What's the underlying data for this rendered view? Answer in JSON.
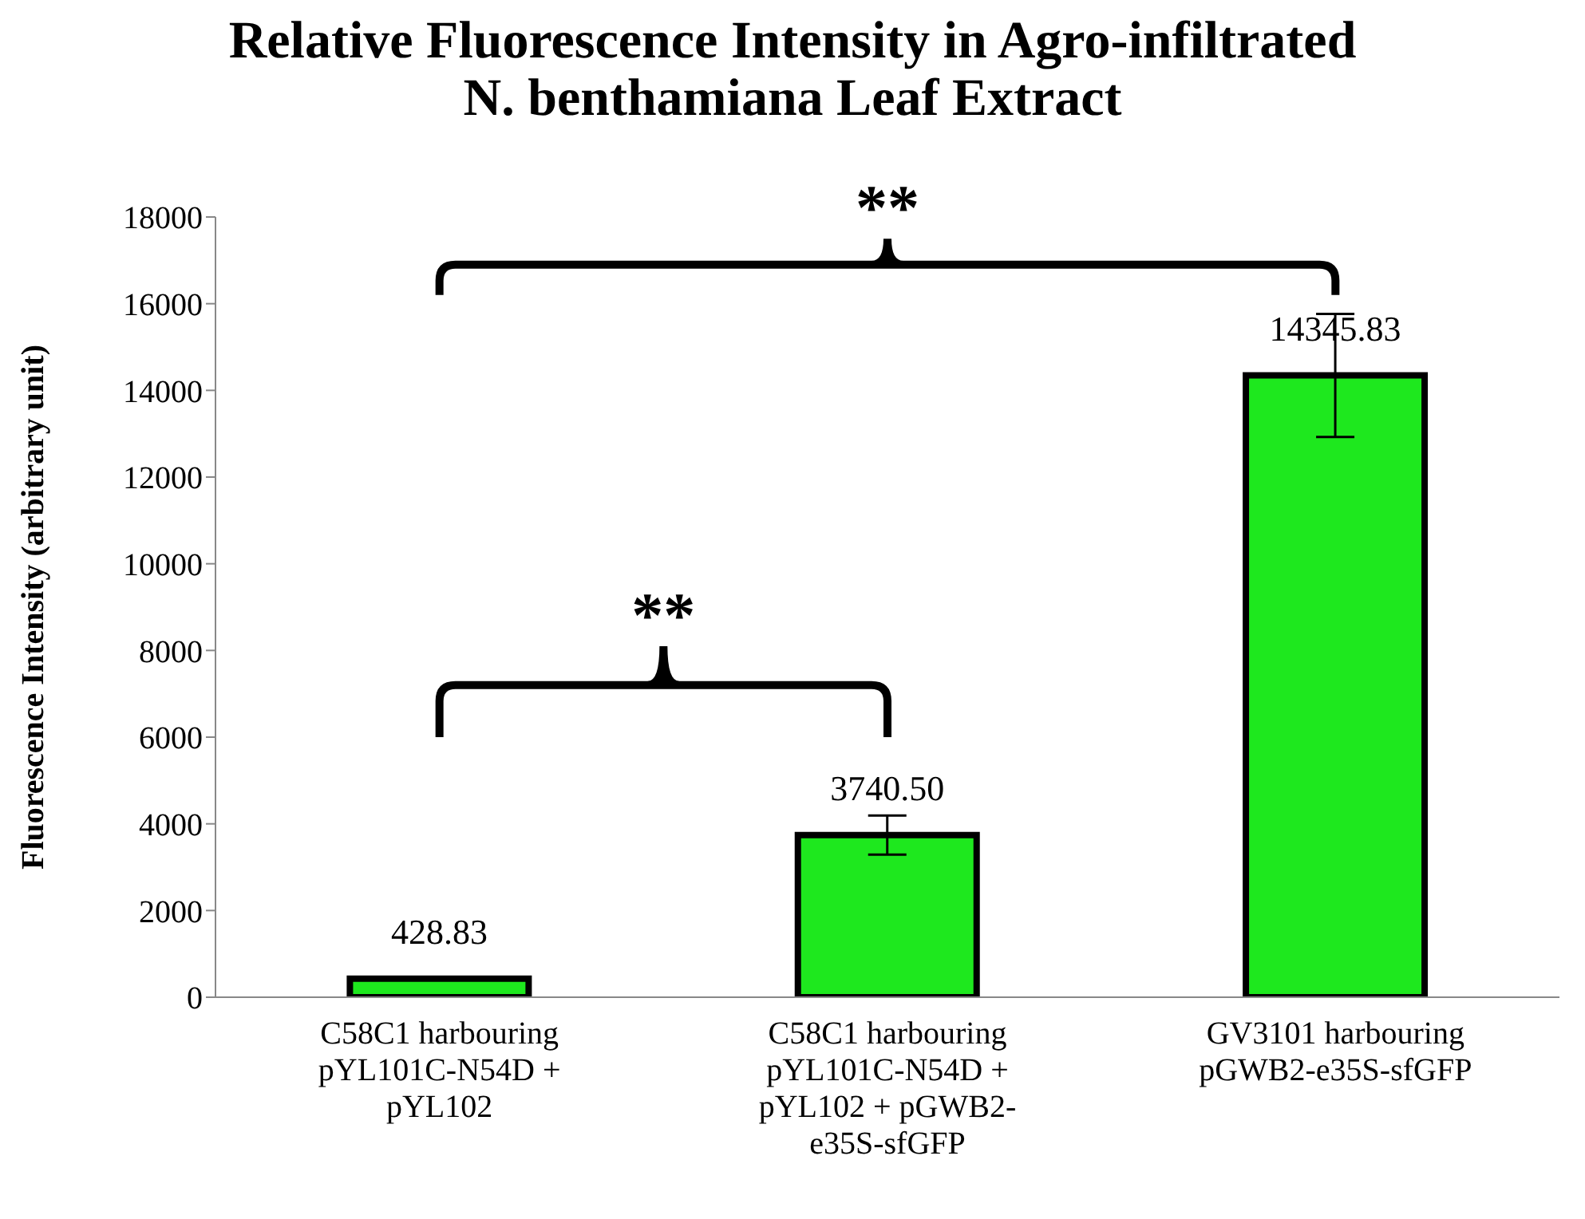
{
  "chart_data": {
    "type": "bar",
    "title": "Relative Fluorescence Intensity in Agro-infiltrated N. benthamiana Leaf Extract",
    "ylabel": "Fluorescence Intensity (arbitrary unit)",
    "categories": [
      "C58C1 harbouring pYL101C-N54D + pYL102",
      "C58C1 harbouring pYL101C-N54D + pYL102 + pGWB2-e35S-sfGFP",
      "GV3101 harbouring pGWB2-e35S-sfGFP"
    ],
    "values": [
      428.83,
      3740.5,
      14345.83
    ],
    "value_labels": [
      "428.83",
      "3740.50",
      "14345.83"
    ],
    "errors": [
      null,
      450,
      1420
    ],
    "color": "#1ee81e",
    "ylim": [
      0,
      18000
    ],
    "yticks": [
      0,
      2000,
      4000,
      6000,
      8000,
      10000,
      12000,
      14000,
      16000,
      18000
    ],
    "annotations": [
      "**",
      "**"
    ],
    "grid": false,
    "legend": false
  }
}
